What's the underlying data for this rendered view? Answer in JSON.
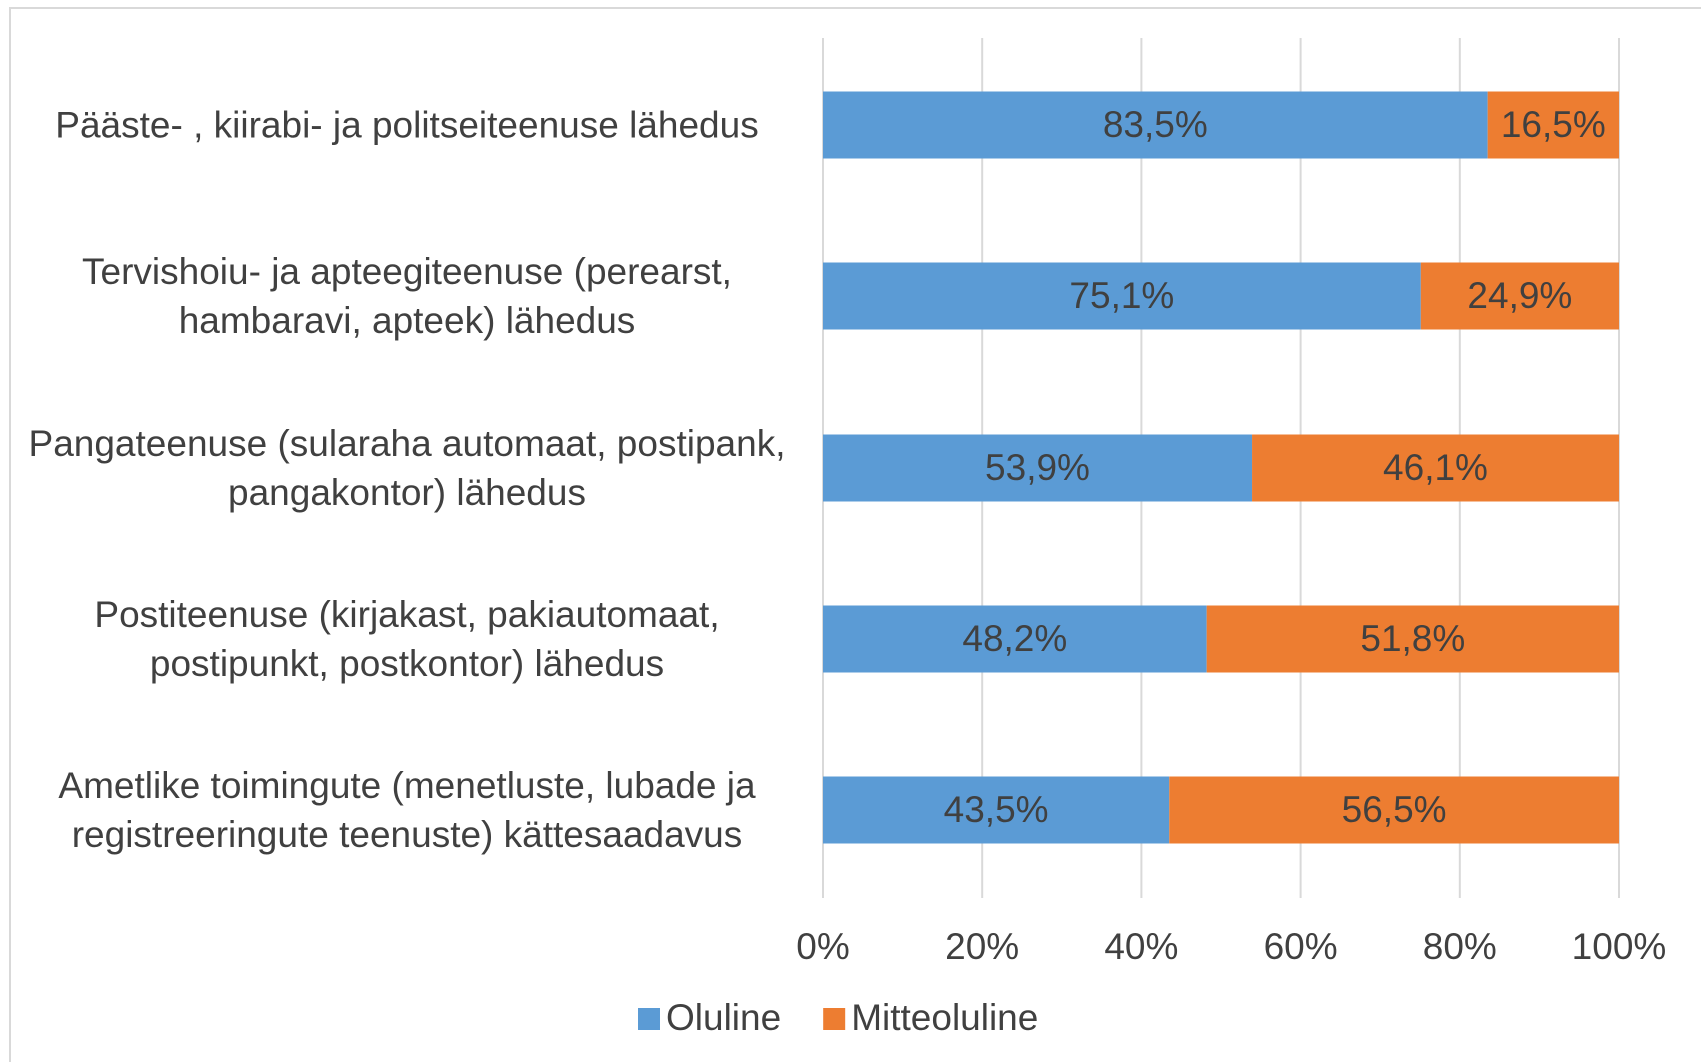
{
  "chart_data": {
    "type": "stacked_bar_horizontal",
    "categories": [
      "Pääste- , kiirabi- ja politseiteenuse lähedus",
      "Tervishoiu- ja apteegiteenuse (perearst, hambaravi, apteek) lähedus",
      "Pangateenuse (sularaha automaat, postipank, pangakontor) lähedus",
      "Postiteenuse (kirjakast, pakiautomaat, postipunkt, postkontor) lähedus",
      "Ametlike toimingute (menetluste, lubade ja registreeringute teenuste) kättesaadavus"
    ],
    "series": [
      {
        "name": "Oluline",
        "color": "#5b9bd5",
        "values": [
          83.5,
          75.1,
          53.9,
          48.2,
          43.5
        ],
        "value_labels": [
          "83,5%",
          "75,1%",
          "53,9%",
          "48,2%",
          "43,5%"
        ]
      },
      {
        "name": "Mitteoluline",
        "color": "#ed7d31",
        "values": [
          16.5,
          24.9,
          46.1,
          51.8,
          56.5
        ],
        "value_labels": [
          "16,5%",
          "24,9%",
          "46,1%",
          "51,8%",
          "56,5%"
        ]
      }
    ],
    "xlim": [
      0,
      100
    ],
    "xticks": [
      {
        "value": 0,
        "label": "0%"
      },
      {
        "value": 20,
        "label": "20%"
      },
      {
        "value": 40,
        "label": "40%"
      },
      {
        "value": 60,
        "label": "60%"
      },
      {
        "value": 80,
        "label": "80%"
      },
      {
        "value": 100,
        "label": "100%"
      }
    ],
    "grid": true,
    "legend": "bottom"
  }
}
